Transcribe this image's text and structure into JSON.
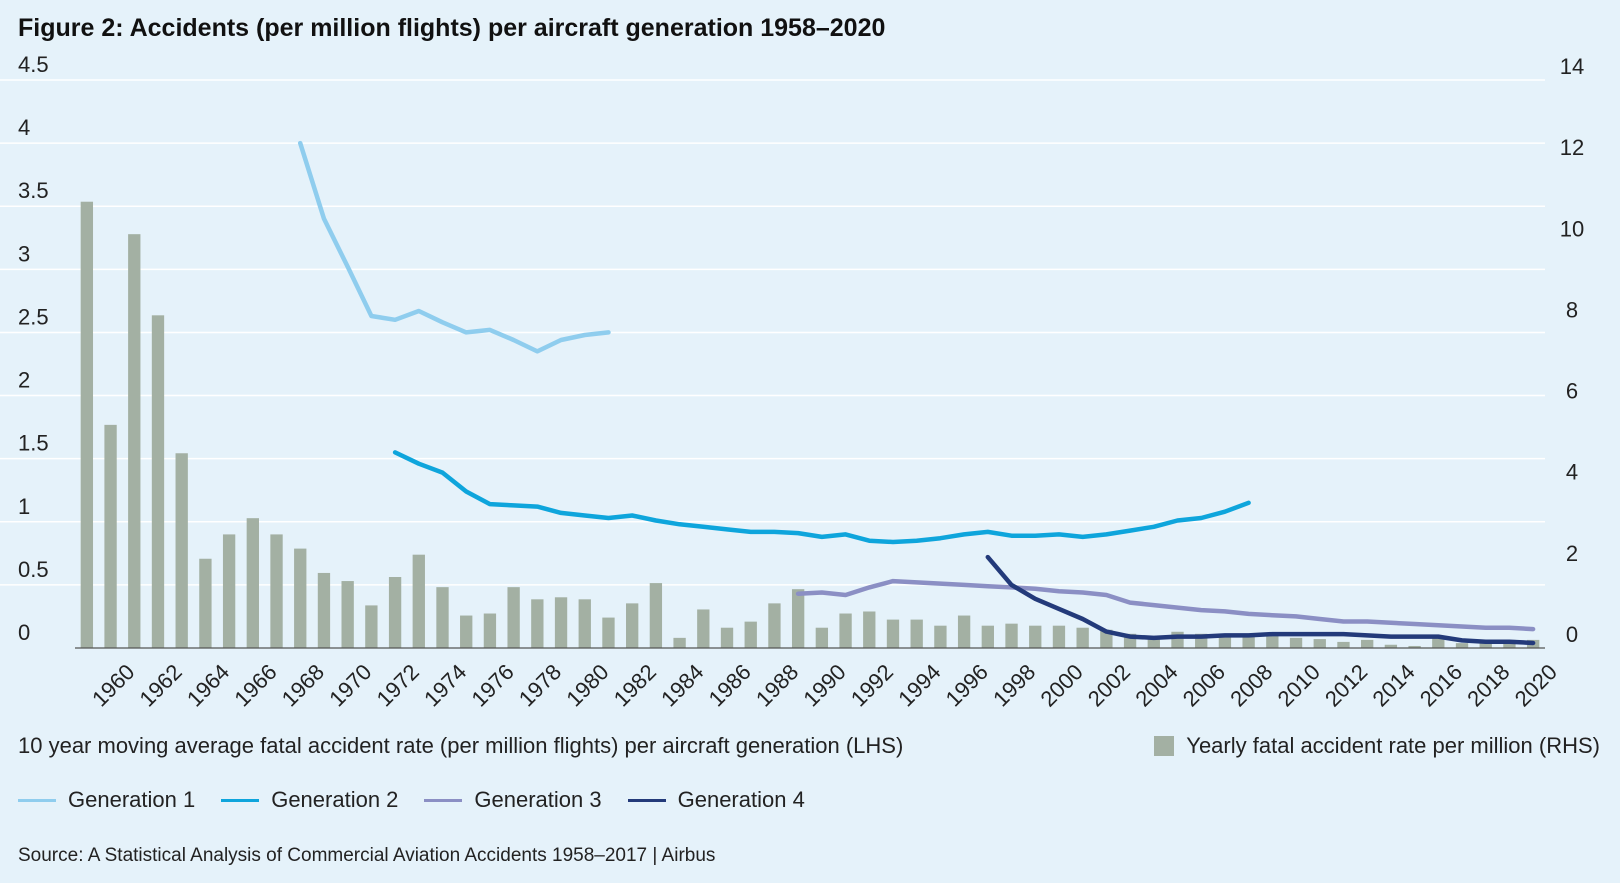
{
  "chart_data": {
    "type": "bar+line",
    "title": "Figure 2: Accidents (per million flights) per aircraft generation 1958–2020",
    "left_axis": {
      "ticks": [
        "0",
        "0.5",
        "1",
        "1.5",
        "2",
        "2.5",
        "3",
        "3.5",
        "4",
        "4.5"
      ],
      "range": [
        0,
        4.5
      ]
    },
    "right_axis": {
      "ticks": [
        "0",
        "2",
        "4",
        "6",
        "8",
        "10",
        "12",
        "14"
      ],
      "range": [
        0,
        14
      ]
    },
    "x_range": [
      1959,
      2020
    ],
    "x_tick_labels": [
      "1960",
      "1962",
      "1964",
      "1966",
      "1968",
      "1970",
      "1972",
      "1974",
      "1976",
      "1978",
      "1980",
      "1982",
      "1984",
      "1986",
      "1988",
      "1990",
      "1992",
      "1994",
      "1996",
      "1998",
      "2000",
      "2002",
      "2004",
      "2006",
      "2008",
      "2010",
      "2012",
      "2014",
      "2016",
      "2018",
      "2020"
    ],
    "bars": {
      "name": "Yearly fatal accident rate per million (RHS)",
      "axis": "right",
      "color": "#a3b0a3",
      "years": [
        1959,
        1960,
        1961,
        1962,
        1963,
        1964,
        1965,
        1966,
        1967,
        1968,
        1969,
        1970,
        1971,
        1972,
        1973,
        1974,
        1975,
        1976,
        1977,
        1978,
        1979,
        1980,
        1981,
        1982,
        1983,
        1984,
        1985,
        1986,
        1987,
        1988,
        1989,
        1990,
        1991,
        1992,
        1993,
        1994,
        1995,
        1996,
        1997,
        1998,
        1999,
        2000,
        2001,
        2002,
        2003,
        2004,
        2005,
        2006,
        2007,
        2008,
        2009,
        2010,
        2011,
        2012,
        2013,
        2014,
        2015,
        2016,
        2017,
        2018,
        2019,
        2020
      ],
      "values": [
        11.0,
        5.5,
        10.2,
        8.2,
        4.8,
        2.2,
        2.8,
        3.2,
        2.8,
        2.45,
        1.85,
        1.65,
        1.05,
        1.75,
        2.3,
        1.5,
        0.8,
        0.85,
        1.5,
        1.2,
        1.25,
        1.2,
        0.75,
        1.1,
        1.6,
        0.25,
        0.95,
        0.5,
        0.65,
        1.1,
        1.45,
        0.5,
        0.85,
        0.9,
        0.7,
        0.7,
        0.55,
        0.8,
        0.55,
        0.6,
        0.55,
        0.55,
        0.5,
        0.45,
        0.35,
        0.3,
        0.4,
        0.35,
        0.35,
        0.3,
        0.3,
        0.25,
        0.22,
        0.15,
        0.2,
        0.08,
        0.05,
        0.25,
        0.12,
        0.15,
        0.2,
        0.2
      ]
    },
    "series": [
      {
        "name": "Generation 1",
        "axis": "left",
        "color": "#8fcdee",
        "x": [
          1968,
          1969,
          1970,
          1971,
          1972,
          1973,
          1974,
          1975,
          1976,
          1977,
          1978,
          1979,
          1980,
          1981
        ],
        "values": [
          4.0,
          3.4,
          3.02,
          2.63,
          2.6,
          2.67,
          2.58,
          2.5,
          2.52,
          2.44,
          2.35,
          2.44,
          2.48,
          2.5
        ]
      },
      {
        "name": "Generation 2",
        "axis": "left",
        "color": "#0ea5dc",
        "x": [
          1972,
          1973,
          1974,
          1975,
          1976,
          1977,
          1978,
          1979,
          1980,
          1981,
          1982,
          1983,
          1984,
          1985,
          1986,
          1987,
          1988,
          1989,
          1990,
          1991,
          1992,
          1993,
          1994,
          1995,
          1996,
          1997,
          1998,
          1999,
          2000,
          2001,
          2002,
          2003,
          2004,
          2005,
          2006,
          2007,
          2008
        ],
        "values": [
          1.55,
          1.46,
          1.39,
          1.24,
          1.14,
          1.13,
          1.12,
          1.07,
          1.05,
          1.03,
          1.05,
          1.01,
          0.98,
          0.96,
          0.94,
          0.92,
          0.92,
          0.91,
          0.88,
          0.9,
          0.85,
          0.84,
          0.85,
          0.87,
          0.9,
          0.92,
          0.89,
          0.89,
          0.9,
          0.88,
          0.9,
          0.93,
          0.96,
          1.01,
          1.03,
          1.08,
          1.15
        ]
      },
      {
        "name": "Generation 3",
        "axis": "left",
        "color": "#8b8fc4",
        "x": [
          1989,
          1990,
          1991,
          1992,
          1993,
          1994,
          1995,
          1996,
          1997,
          1998,
          1999,
          2000,
          2001,
          2002,
          2003,
          2004,
          2005,
          2006,
          2007,
          2008,
          2009,
          2010,
          2011,
          2012,
          2013,
          2014,
          2015,
          2016,
          2017,
          2018,
          2019,
          2020
        ],
        "values": [
          0.43,
          0.44,
          0.42,
          0.48,
          0.53,
          0.52,
          0.51,
          0.5,
          0.49,
          0.48,
          0.47,
          0.45,
          0.44,
          0.42,
          0.36,
          0.34,
          0.32,
          0.3,
          0.29,
          0.27,
          0.26,
          0.25,
          0.23,
          0.21,
          0.21,
          0.2,
          0.19,
          0.18,
          0.17,
          0.16,
          0.16,
          0.15
        ]
      },
      {
        "name": "Generation 4",
        "axis": "left",
        "color": "#233a7a",
        "x": [
          1997,
          1998,
          1999,
          2000,
          2001,
          2002,
          2003,
          2004,
          2005,
          2006,
          2007,
          2008,
          2009,
          2010,
          2011,
          2012,
          2013,
          2014,
          2015,
          2016,
          2017,
          2018,
          2019,
          2020
        ],
        "values": [
          0.72,
          0.5,
          0.39,
          0.31,
          0.23,
          0.13,
          0.09,
          0.08,
          0.09,
          0.09,
          0.1,
          0.1,
          0.11,
          0.11,
          0.11,
          0.11,
          0.1,
          0.09,
          0.09,
          0.09,
          0.06,
          0.05,
          0.05,
          0.04
        ]
      }
    ]
  },
  "legend": {
    "caption": "10 year moving average fatal accident rate (per million flights) per aircraft generation (LHS)",
    "bar_label": "Yearly fatal accident rate per million (RHS)",
    "items": [
      {
        "label": "Generation 1",
        "color": "#8fcdee"
      },
      {
        "label": "Generation 2",
        "color": "#0ea5dc"
      },
      {
        "label": "Generation 3",
        "color": "#8b8fc4"
      },
      {
        "label": "Generation 4",
        "color": "#233a7a"
      }
    ]
  },
  "source": "Source: A Statistical Analysis of Commercial Aviation Accidents 1958–2017 | Airbus"
}
